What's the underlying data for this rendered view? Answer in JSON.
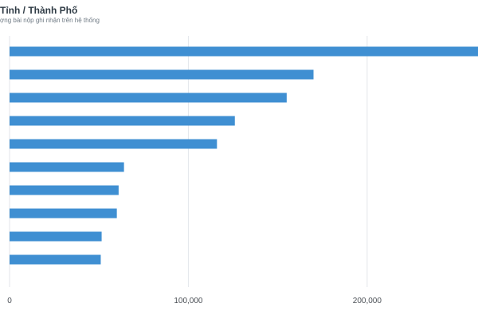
{
  "title": "Tỉnh / Thành Phố",
  "subtitle": "ợng bài nộp ghi nhận trên hệ thống",
  "colors": {
    "bar": "#3f8fd2",
    "grid": "#e3e6ea",
    "axis_text": "#4a4f55"
  },
  "chart_data": {
    "type": "bar",
    "orientation": "horizontal",
    "values": [
      262000,
      170000,
      155000,
      126000,
      116000,
      64000,
      61000,
      60000,
      51500,
      51000
    ],
    "xlim": [
      0,
      262000
    ],
    "xticks": [
      0,
      100000,
      200000
    ],
    "xtick_labels": [
      "0",
      "100,000",
      "200,000"
    ],
    "grid": true,
    "legend": "none"
  }
}
